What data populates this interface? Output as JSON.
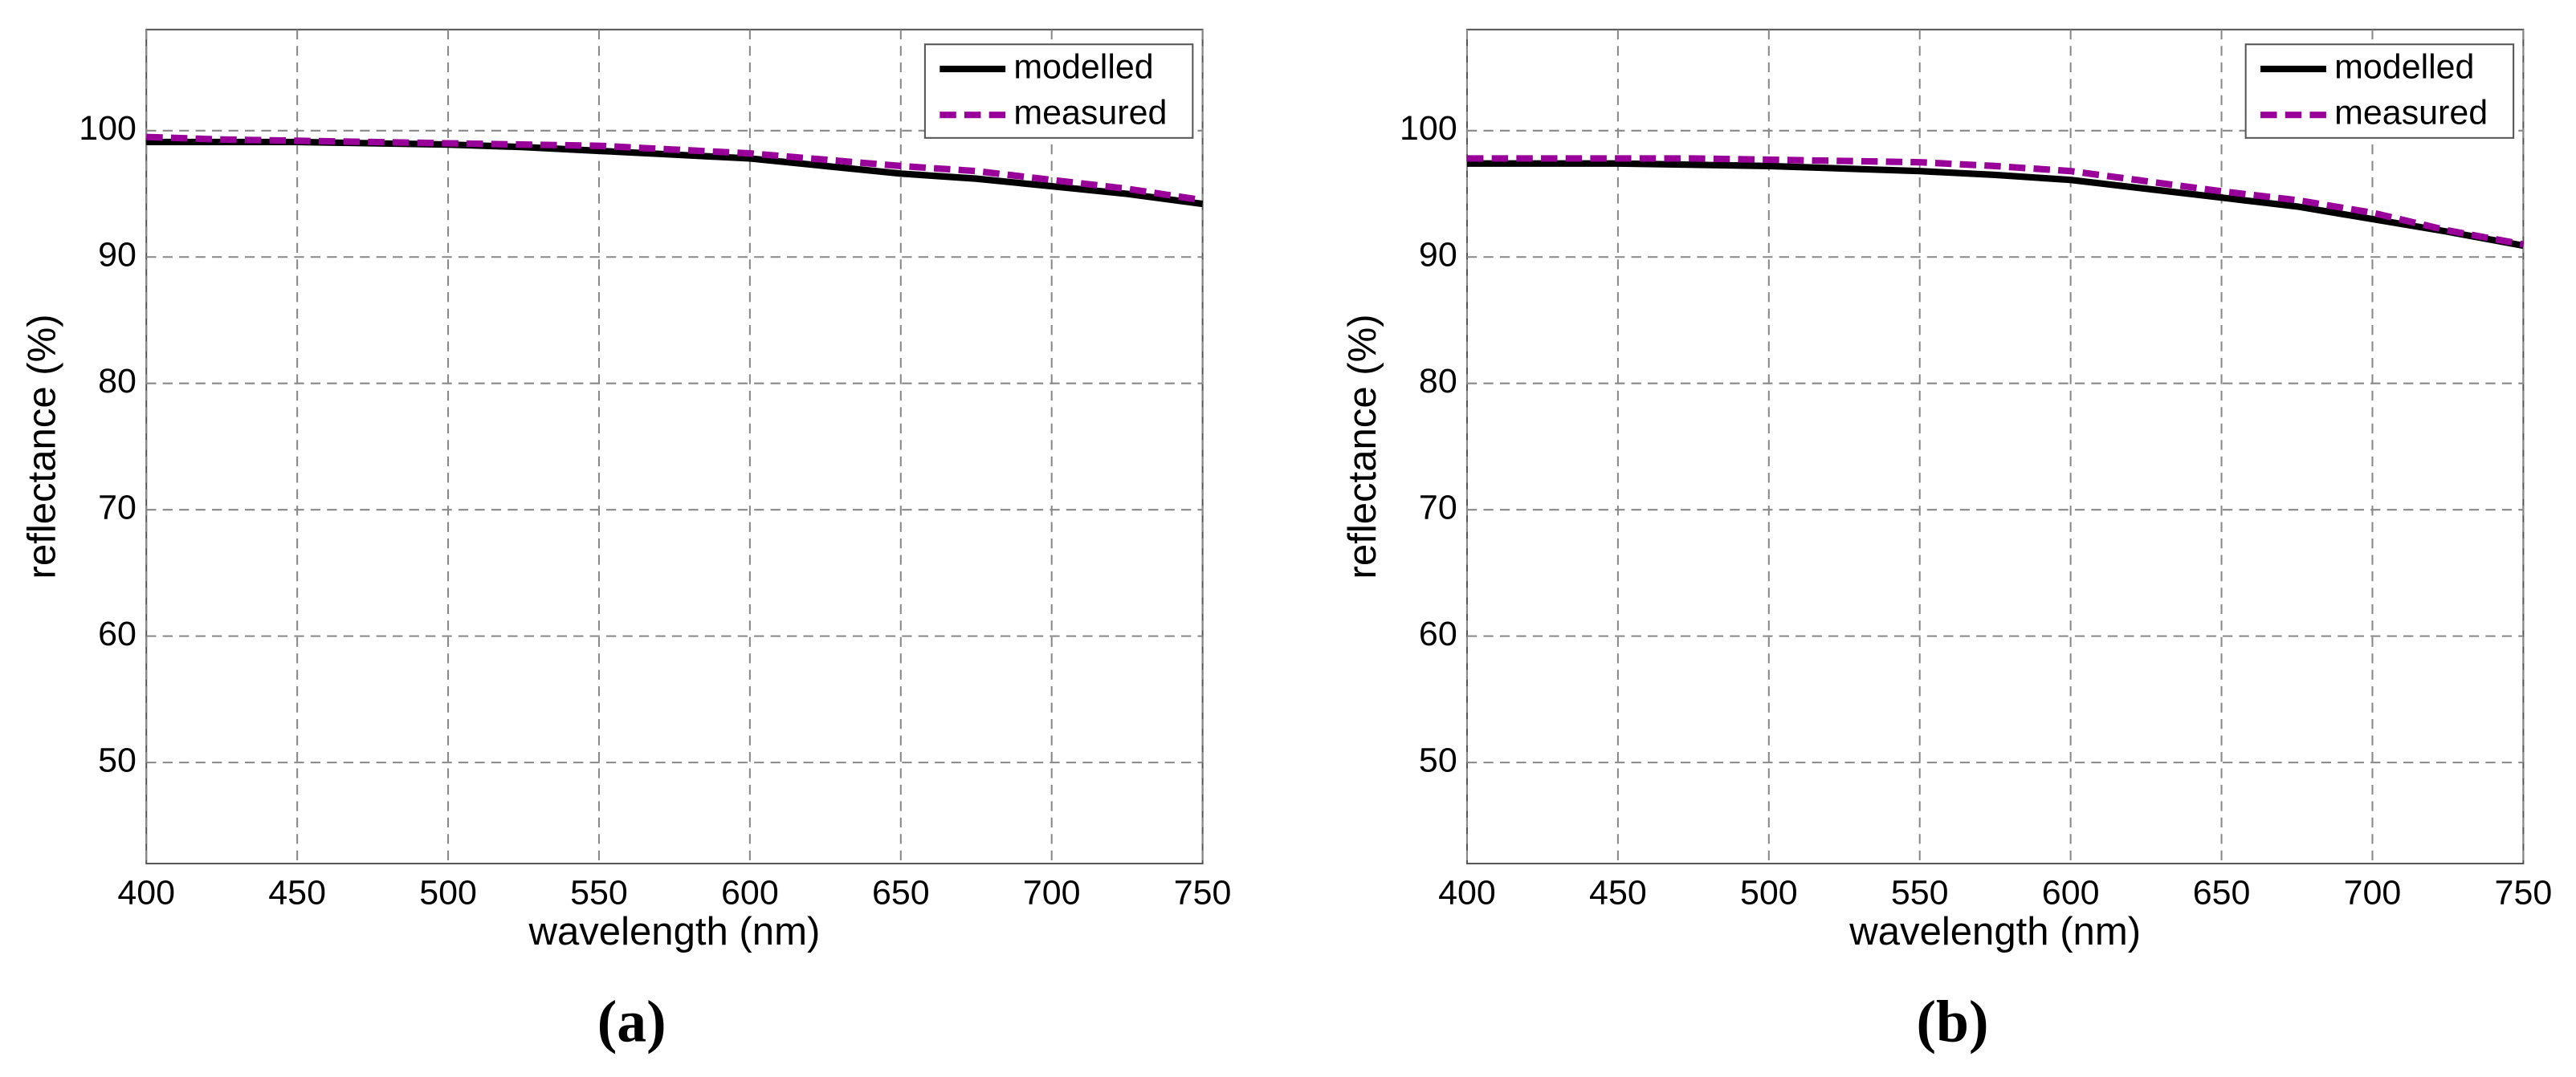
{
  "chart_data": [
    {
      "type": "line",
      "caption": "(a)",
      "x_label": "wavelength (nm)",
      "y_label": "reflectance (%)",
      "x": [
        400,
        425,
        450,
        475,
        500,
        525,
        550,
        575,
        600,
        625,
        650,
        675,
        700,
        725,
        750
      ],
      "xlim": [
        400,
        750
      ],
      "xticks": [
        400,
        450,
        500,
        550,
        600,
        650,
        700,
        750
      ],
      "ylim": [
        42,
        108
      ],
      "yticks": [
        50,
        60,
        70,
        80,
        90,
        100
      ],
      "grid": true,
      "legend": "upper right",
      "series": [
        {
          "name": "modelled",
          "color": "#000000",
          "dashed": false,
          "values": [
            99.1,
            99.1,
            99.1,
            99.0,
            98.9,
            98.7,
            98.4,
            98.1,
            97.8,
            97.2,
            96.6,
            96.2,
            95.6,
            95.0,
            94.2
          ]
        },
        {
          "name": "measured",
          "color": "#990099",
          "dashed": true,
          "values": [
            99.5,
            99.3,
            99.2,
            99.1,
            99.0,
            98.9,
            98.8,
            98.5,
            98.2,
            97.7,
            97.2,
            96.8,
            96.1,
            95.4,
            94.5
          ]
        }
      ]
    },
    {
      "type": "line",
      "caption": "(b)",
      "x_label": "wavelength (nm)",
      "y_label": "reflectance (%)",
      "x": [
        400,
        425,
        450,
        475,
        500,
        525,
        550,
        575,
        600,
        625,
        650,
        675,
        700,
        725,
        750
      ],
      "xlim": [
        400,
        750
      ],
      "xticks": [
        400,
        450,
        500,
        550,
        600,
        650,
        700,
        750
      ],
      "ylim": [
        42,
        108
      ],
      "yticks": [
        50,
        60,
        70,
        80,
        90,
        100
      ],
      "grid": true,
      "legend": "upper right",
      "series": [
        {
          "name": "modelled",
          "color": "#000000",
          "dashed": false,
          "values": [
            97.4,
            97.4,
            97.4,
            97.3,
            97.2,
            97.0,
            96.8,
            96.5,
            96.1,
            95.4,
            94.7,
            94.0,
            93.0,
            92.0,
            90.9
          ]
        },
        {
          "name": "measured",
          "color": "#990099",
          "dashed": true,
          "values": [
            97.8,
            97.8,
            97.8,
            97.8,
            97.7,
            97.6,
            97.5,
            97.2,
            96.8,
            96.0,
            95.2,
            94.5,
            93.5,
            92.1,
            91.0
          ]
        }
      ]
    }
  ]
}
